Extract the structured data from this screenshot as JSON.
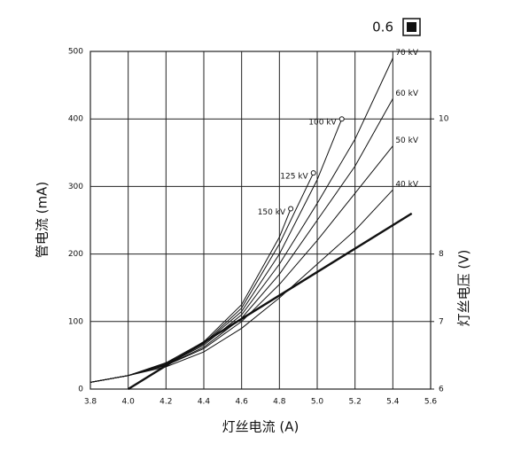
{
  "chart_data": {
    "type": "line",
    "annotation": "0.6",
    "xlabel": "灯丝电流 (A)",
    "ylabel": "管电流 (mA)",
    "y2label": "灯丝电压 (V)",
    "xlim": [
      3.8,
      5.6
    ],
    "xticks": [
      3.8,
      {
        "value": 4,
        "label": "4.0"
      },
      4.2,
      4.4,
      4.6,
      4.8,
      {
        "value": 5,
        "label": "5.0"
      },
      5.2,
      5.4,
      5.6
    ],
    "ylim": [
      0,
      500
    ],
    "yticks": [
      0,
      100,
      200,
      300,
      400,
      500
    ],
    "y2lim": [
      6,
      11
    ],
    "y2ticks": [
      6,
      7,
      8,
      10
    ],
    "grid": true,
    "color": "#111111",
    "series": [
      {
        "name": "40 kV",
        "x": [
          3.8,
          4.0,
          4.2,
          4.4,
          4.6,
          4.8,
          5.0,
          5.2,
          5.4
        ],
        "values": [
          10,
          20,
          33,
          55,
          90,
          135,
          185,
          235,
          295
        ]
      },
      {
        "name": "50 kV",
        "x": [
          3.8,
          4.0,
          4.2,
          4.4,
          4.6,
          4.8,
          5.0,
          5.2,
          5.4
        ],
        "values": [
          10,
          20,
          35,
          60,
          100,
          155,
          220,
          290,
          360
        ]
      },
      {
        "name": "60 kV",
        "x": [
          3.8,
          4.0,
          4.2,
          4.4,
          4.6,
          4.8,
          5.0,
          5.2,
          5.4
        ],
        "values": [
          10,
          20,
          35,
          62,
          105,
          170,
          250,
          330,
          430
        ]
      },
      {
        "name": "70 kV",
        "x": [
          3.8,
          4.0,
          4.2,
          4.4,
          4.6,
          4.8,
          5.0,
          5.2,
          5.4
        ],
        "values": [
          10,
          20,
          36,
          65,
          110,
          185,
          275,
          370,
          490
        ]
      },
      {
        "name": "100 kV",
        "x": [
          3.8,
          4.0,
          4.2,
          4.4,
          4.6,
          4.8,
          5.0,
          5.13
        ],
        "values": [
          10,
          20,
          37,
          67,
          115,
          200,
          310,
          400
        ],
        "marker": true
      },
      {
        "name": "125 kV",
        "x": [
          3.8,
          4.0,
          4.2,
          4.4,
          4.6,
          4.8,
          4.98
        ],
        "values": [
          10,
          20,
          38,
          68,
          120,
          215,
          320
        ],
        "marker": true
      },
      {
        "name": "150 kV",
        "x": [
          3.8,
          4.0,
          4.2,
          4.4,
          4.6,
          4.8,
          4.86
        ],
        "values": [
          10,
          20,
          39,
          70,
          125,
          225,
          267
        ],
        "marker": true
      },
      {
        "x": [
          4.0,
          5.5
        ],
        "values": [
          6,
          8.6
        ],
        "axis": "y2",
        "width": 2.4
      }
    ]
  }
}
